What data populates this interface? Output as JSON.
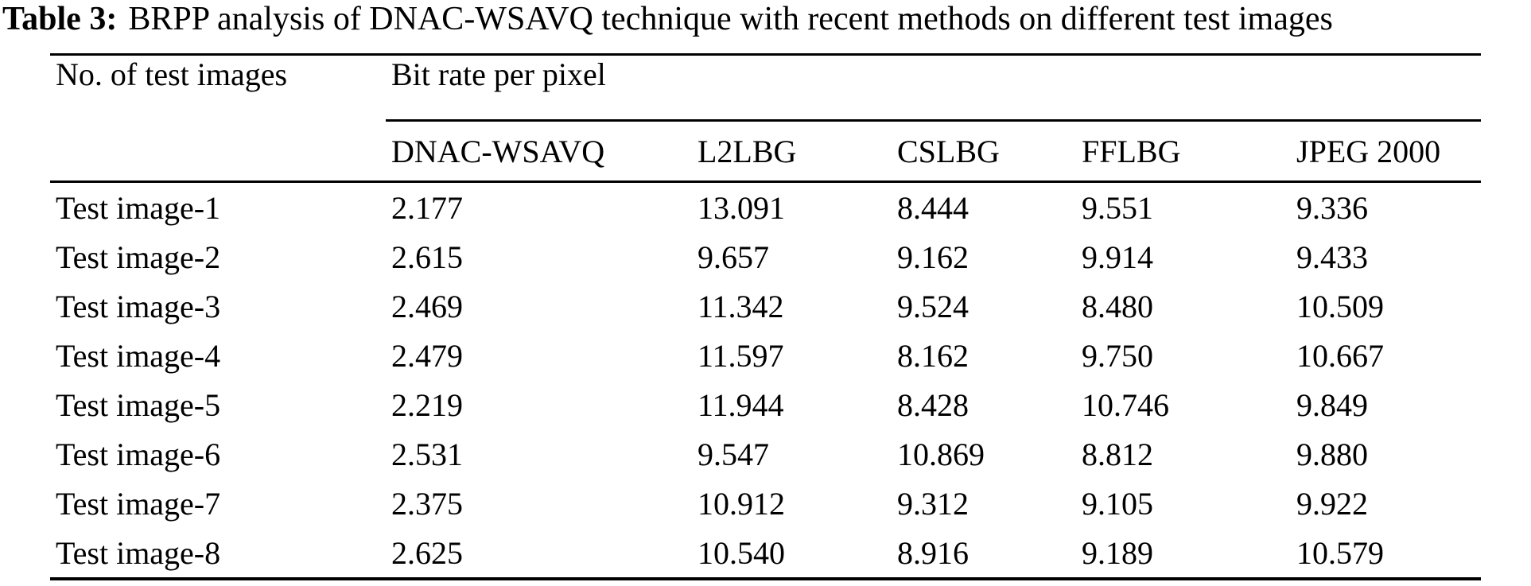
{
  "caption": {
    "label": "Table 3:",
    "text": "BRPP analysis of DNAC-WSAVQ technique with recent methods on different test images"
  },
  "table": {
    "row_header": "No. of test images",
    "group_header": "Bit rate per pixel",
    "columns": [
      "DNAC-WSAVQ",
      "L2LBG",
      "CSLBG",
      "FFLBG",
      "JPEG 2000"
    ],
    "rows": [
      {
        "label": "Test image-1",
        "values": [
          "2.177",
          "13.091",
          "8.444",
          "9.551",
          "9.336"
        ]
      },
      {
        "label": "Test image-2",
        "values": [
          "2.615",
          "9.657",
          "9.162",
          "9.914",
          "9.433"
        ]
      },
      {
        "label": "Test image-3",
        "values": [
          "2.469",
          "11.342",
          "9.524",
          "8.480",
          "10.509"
        ]
      },
      {
        "label": "Test image-4",
        "values": [
          "2.479",
          "11.597",
          "8.162",
          "9.750",
          "10.667"
        ]
      },
      {
        "label": "Test image-5",
        "values": [
          "2.219",
          "11.944",
          "8.428",
          "10.746",
          "9.849"
        ]
      },
      {
        "label": "Test image-6",
        "values": [
          "2.531",
          "9.547",
          "10.869",
          "8.812",
          "9.880"
        ]
      },
      {
        "label": "Test image-7",
        "values": [
          "2.375",
          "10.912",
          "9.312",
          "9.105",
          "9.922"
        ]
      },
      {
        "label": "Test image-8",
        "values": [
          "2.625",
          "10.540",
          "8.916",
          "9.189",
          "10.579"
        ]
      }
    ]
  },
  "colors": {
    "text": "#000000",
    "background": "#ffffff",
    "rule": "#000000"
  }
}
